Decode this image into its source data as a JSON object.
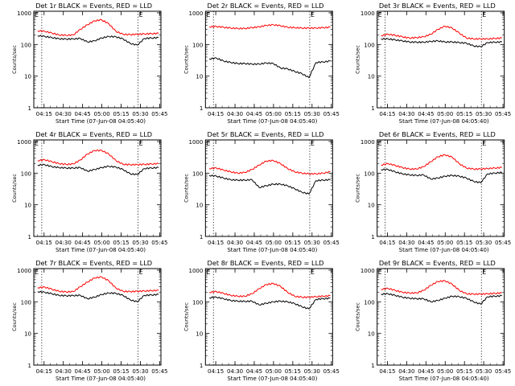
{
  "chart_data": [
    {
      "type": "line",
      "title": "Det 1r BLACK = Events, RED = LLD",
      "xlabel": "Start Time (07-Jun-08 04:05:40)",
      "ylabel": "Counts/sec",
      "yscale": "log",
      "ylim": [
        1,
        1000
      ],
      "series": [
        {
          "name": "Events",
          "color": "#000000",
          "values": [
            190,
            180,
            165,
            152,
            148,
            150,
            155,
            120,
            130,
            160,
            180,
            175,
            150,
            108,
            95,
            155,
            160,
            165
          ]
        },
        {
          "name": "LLD",
          "color": "#ff0000",
          "values": [
            270,
            260,
            230,
            200,
            195,
            200,
            300,
            420,
            560,
            600,
            450,
            260,
            210,
            205,
            210,
            215,
            220,
            225
          ]
        }
      ]
    },
    {
      "type": "line",
      "title": "Det 2r BLACK = Events, RED = LLD",
      "xlabel": "Start Time (07-Jun-08 04:05:40)",
      "ylabel": "Counts/sec",
      "yscale": "log",
      "ylim": [
        1,
        1000
      ],
      "series": [
        {
          "name": "Events",
          "color": "#000000",
          "values": [
            35,
            37,
            30,
            27,
            25,
            25,
            24,
            24,
            26,
            25,
            18,
            17,
            14,
            12,
            9,
            27,
            28,
            30
          ]
        },
        {
          "name": "LLD",
          "color": "#ff0000",
          "values": [
            360,
            370,
            350,
            330,
            320,
            320,
            340,
            360,
            400,
            420,
            390,
            350,
            340,
            330,
            330,
            330,
            340,
            350
          ]
        }
      ]
    },
    {
      "type": "line",
      "title": "Det 3r BLACK = Events, RED = LLD",
      "xlabel": "Start Time (07-Jun-08 04:05:40)",
      "ylabel": "Counts/sec",
      "yscale": "log",
      "ylim": [
        1,
        1000
      ],
      "series": [
        {
          "name": "Events",
          "color": "#000000",
          "values": [
            150,
            150,
            140,
            130,
            120,
            118,
            118,
            125,
            130,
            120,
            120,
            115,
            110,
            90,
            85,
            115,
            118,
            120
          ]
        },
        {
          "name": "LLD",
          "color": "#ff0000",
          "values": [
            190,
            210,
            195,
            175,
            160,
            165,
            175,
            210,
            300,
            380,
            330,
            230,
            160,
            150,
            150,
            150,
            155,
            160
          ]
        }
      ]
    },
    {
      "type": "line",
      "title": "Det 4r BLACK = Events, RED = LLD",
      "xlabel": "Start Time (07-Jun-08 04:05:40)",
      "ylabel": "Counts/sec",
      "yscale": "log",
      "ylim": [
        1,
        1000
      ],
      "series": [
        {
          "name": "Events",
          "color": "#000000",
          "values": [
            180,
            185,
            160,
            150,
            145,
            145,
            150,
            115,
            130,
            150,
            165,
            155,
            130,
            95,
            90,
            140,
            145,
            150
          ]
        },
        {
          "name": "LLD",
          "color": "#ff0000",
          "values": [
            250,
            265,
            230,
            200,
            190,
            195,
            260,
            400,
            520,
            520,
            400,
            250,
            190,
            185,
            185,
            190,
            195,
            200
          ]
        }
      ]
    },
    {
      "type": "line",
      "title": "Det 5r BLACK = Events, RED = LLD",
      "xlabel": "Start Time (07-Jun-08 04:05:40)",
      "ylabel": "Counts/sec",
      "yscale": "log",
      "ylim": [
        1,
        1000
      ],
      "series": [
        {
          "name": "Events",
          "color": "#000000",
          "values": [
            85,
            80,
            70,
            62,
            60,
            60,
            62,
            35,
            40,
            45,
            45,
            40,
            32,
            25,
            22,
            58,
            60,
            62
          ]
        },
        {
          "name": "LLD",
          "color": "#ff0000",
          "values": [
            140,
            145,
            125,
            110,
            100,
            105,
            130,
            180,
            240,
            250,
            200,
            140,
            110,
            100,
            95,
            95,
            100,
            110
          ]
        }
      ]
    },
    {
      "type": "line",
      "title": "Det 6r BLACK = Events, RED = LLD",
      "xlabel": "Start Time (07-Jun-08 04:05:40)",
      "ylabel": "Counts/sec",
      "yscale": "log",
      "ylim": [
        1,
        1000
      ],
      "series": [
        {
          "name": "Events",
          "color": "#000000",
          "values": [
            130,
            130,
            110,
            95,
            88,
            85,
            88,
            65,
            70,
            80,
            85,
            80,
            70,
            55,
            50,
            95,
            100,
            105
          ]
        },
        {
          "name": "LLD",
          "color": "#ff0000",
          "values": [
            180,
            200,
            175,
            150,
            135,
            135,
            160,
            230,
            330,
            380,
            320,
            200,
            145,
            135,
            135,
            140,
            145,
            150
          ]
        }
      ]
    },
    {
      "type": "line",
      "title": "Det 7r BLACK = Events, RED = LLD",
      "xlabel": "Start Time (07-Jun-08 04:05:40)",
      "ylabel": "Counts/sec",
      "yscale": "log",
      "ylim": [
        1,
        1000
      ],
      "series": [
        {
          "name": "Events",
          "color": "#000000",
          "values": [
            210,
            200,
            180,
            160,
            155,
            158,
            160,
            125,
            140,
            170,
            190,
            185,
            160,
            115,
            100,
            160,
            165,
            170
          ]
        },
        {
          "name": "LLD",
          "color": "#ff0000",
          "values": [
            280,
            290,
            250,
            215,
            205,
            210,
            300,
            420,
            570,
            610,
            460,
            270,
            215,
            210,
            215,
            220,
            225,
            230
          ]
        }
      ]
    },
    {
      "type": "line",
      "title": "Det 8r BLACK = Events, RED = LLD",
      "xlabel": "Start Time (07-Jun-08 04:05:40)",
      "ylabel": "Counts/sec",
      "yscale": "log",
      "ylim": [
        1,
        1000
      ],
      "series": [
        {
          "name": "Events",
          "color": "#000000",
          "values": [
            135,
            140,
            125,
            110,
            105,
            103,
            105,
            80,
            90,
            100,
            105,
            100,
            88,
            70,
            60,
            120,
            125,
            130
          ]
        },
        {
          "name": "LLD",
          "color": "#ff0000",
          "values": [
            200,
            210,
            185,
            160,
            150,
            150,
            180,
            260,
            350,
            380,
            310,
            200,
            150,
            140,
            140,
            145,
            150,
            155
          ]
        }
      ]
    },
    {
      "type": "line",
      "title": "Det 9r BLACK = Events, RED = LLD",
      "xlabel": "Start Time (07-Jun-08 04:05:40)",
      "ylabel": "Counts/sec",
      "yscale": "log",
      "ylim": [
        1,
        1000
      ],
      "series": [
        {
          "name": "Events",
          "color": "#000000",
          "values": [
            175,
            180,
            160,
            140,
            130,
            125,
            125,
            100,
            110,
            130,
            150,
            145,
            130,
            100,
            85,
            145,
            150,
            155
          ]
        },
        {
          "name": "LLD",
          "color": "#ff0000",
          "values": [
            250,
            265,
            230,
            200,
            190,
            190,
            230,
            330,
            440,
            460,
            360,
            230,
            180,
            175,
            175,
            180,
            185,
            190
          ]
        }
      ]
    }
  ],
  "x_ticks": [
    "04:15",
    "04:30",
    "04:45",
    "05:00",
    "05:15",
    "05:30",
    "05:45"
  ],
  "y_ticks": [
    "1",
    "10",
    "100",
    "1000"
  ],
  "corner_markers": [
    "E",
    "E"
  ]
}
